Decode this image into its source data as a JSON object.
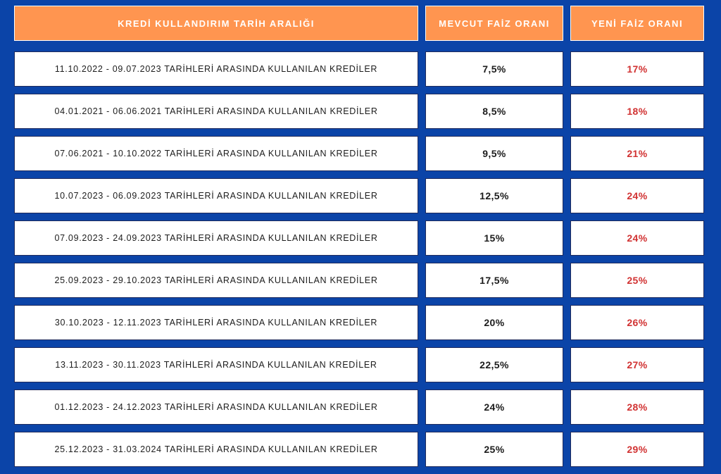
{
  "colors": {
    "background": "#0b44a8",
    "header": "#ff9550",
    "new_rate_text": "#d13232"
  },
  "headers": {
    "range": "KREDİ KULLANDIRIM TARİH ARALIĞI",
    "current": "MEVCUT FAİZ ORANI",
    "new": "YENİ FAİZ ORANI"
  },
  "rows": [
    {
      "range": "11.10.2022 - 09.07.2023 TARİHLERİ ARASINDA KULLANILAN KREDİLER",
      "current": "7,5%",
      "new": "17%"
    },
    {
      "range": "04.01.2021 - 06.06.2021 TARİHLERİ ARASINDA KULLANILAN KREDİLER",
      "current": "8,5%",
      "new": "18%"
    },
    {
      "range": "07.06.2021 - 10.10.2022 TARİHLERİ ARASINDA KULLANILAN KREDİLER",
      "current": "9,5%",
      "new": "21%"
    },
    {
      "range": "10.07.2023 - 06.09.2023 TARİHLERİ ARASINDA KULLANILAN KREDİLER",
      "current": "12,5%",
      "new": "24%"
    },
    {
      "range": "07.09.2023 - 24.09.2023 TARİHLERİ ARASINDA KULLANILAN KREDİLER",
      "current": "15%",
      "new": "24%"
    },
    {
      "range": "25.09.2023 - 29.10.2023 TARİHLERİ ARASINDA KULLANILAN KREDİLER",
      "current": "17,5%",
      "new": "25%"
    },
    {
      "range": "30.10.2023 - 12.11.2023 TARİHLERİ ARASINDA KULLANILAN KREDİLER",
      "current": "20%",
      "new": "26%"
    },
    {
      "range": "13.11.2023 - 30.11.2023 TARİHLERİ ARASINDA KULLANILAN KREDİLER",
      "current": "22,5%",
      "new": "27%"
    },
    {
      "range": "01.12.2023 - 24.12.2023 TARİHLERİ ARASINDA KULLANILAN KREDİLER",
      "current": "24%",
      "new": "28%"
    },
    {
      "range": "25.12.2023 - 31.03.2024 TARİHLERİ ARASINDA KULLANILAN KREDİLER",
      "current": "25%",
      "new": "29%"
    }
  ]
}
